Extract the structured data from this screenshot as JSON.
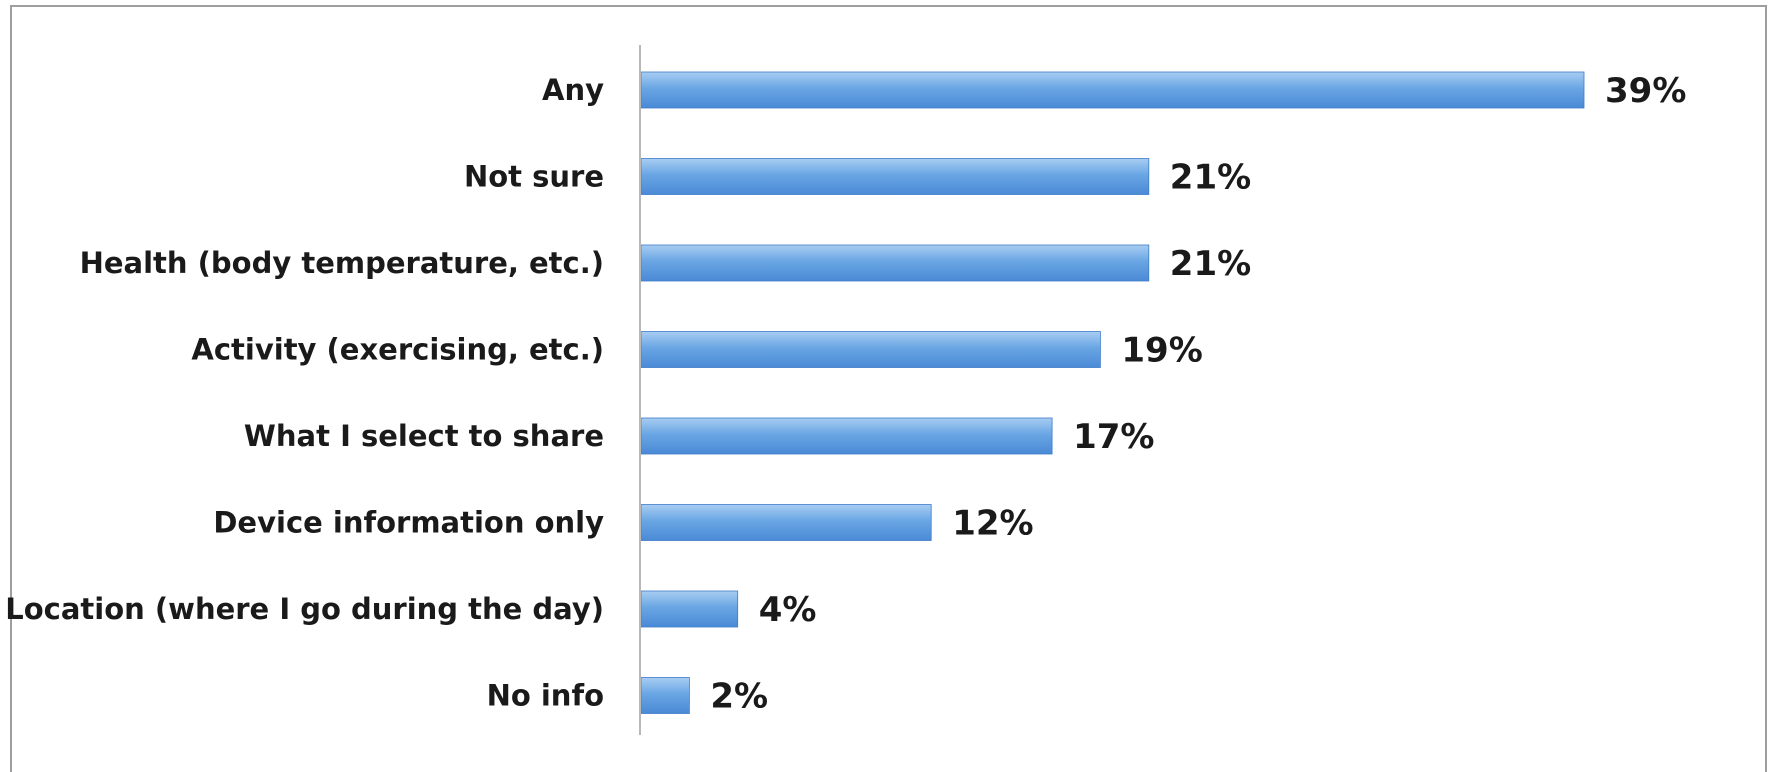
{
  "chart_data": {
    "type": "bar",
    "orientation": "horizontal",
    "categories": [
      "Any",
      "Not sure",
      "Health (body temperature, etc.)",
      "Activity (exercising, etc.)",
      "What I select to share",
      "Device information only",
      "Location (where I go during the day)",
      "No info"
    ],
    "values": [
      39,
      21,
      21,
      19,
      17,
      12,
      4,
      2
    ],
    "value_labels": [
      "39%",
      "21%",
      "21%",
      "19%",
      "17%",
      "12%",
      "4%",
      "2%"
    ],
    "unit": "%",
    "xlim": [
      0,
      39
    ],
    "grid": false,
    "legend": "none",
    "colors": {
      "bar_top": "#a8cdf2",
      "bar_mid": "#6aa6e4",
      "bar_bottom": "#4a8ad6",
      "bar_edge": "#3f7cc9",
      "axis": "#b8b8b8",
      "frame": "#9e9e9e",
      "text": "#1a1a1a"
    }
  }
}
